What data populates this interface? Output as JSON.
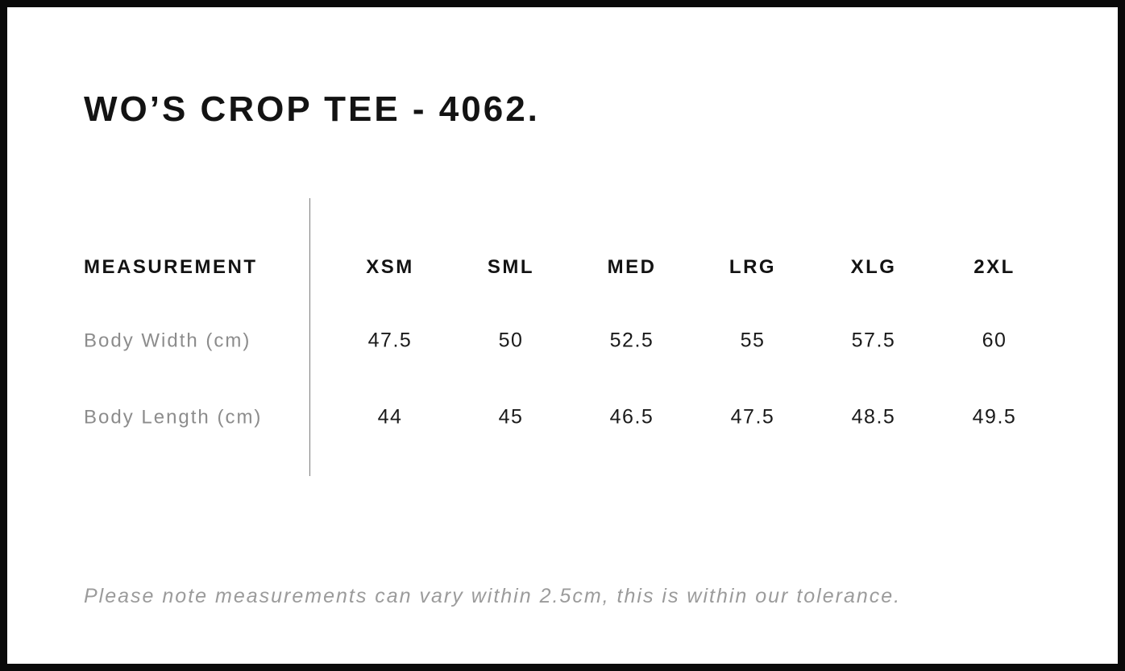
{
  "page": {
    "title": "WO’S CROP TEE - 4062."
  },
  "chart_data": {
    "type": "table",
    "title": "WO’S CROP TEE - 4062.",
    "columns": [
      "MEASUREMENT",
      "XSM",
      "SML",
      "MED",
      "LRG",
      "XLG",
      "2XL"
    ],
    "rows": [
      {
        "label": "Body Width (cm)",
        "values": [
          "47.5",
          "50",
          "52.5",
          "55",
          "57.5",
          "60"
        ]
      },
      {
        "label": "Body Length (cm)",
        "values": [
          "44",
          "45",
          "46.5",
          "47.5",
          "48.5",
          "49.5"
        ]
      }
    ],
    "note": "Please note measurements can vary within 2.5cm, this is within our tolerance."
  },
  "colors": {
    "background": "#ffffff",
    "frame": "#0a0a0a",
    "text_primary": "#131313",
    "text_muted": "#8c8c8c",
    "note_gray": "#9b9b9b",
    "divider": "#7d7d7d"
  }
}
